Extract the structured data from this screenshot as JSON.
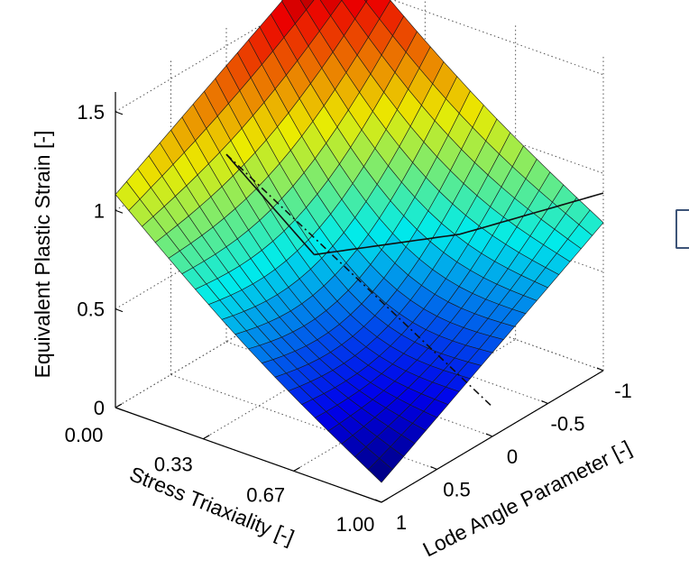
{
  "chart_data": {
    "type": "surface3d",
    "title": "",
    "zlabel": "Equivalent Plastic Strain [-]",
    "xlabel": "Stress Triaxiality [-]",
    "ylabel": "Lode Angle Parameter [-]",
    "x_ticks": [
      "0.00",
      "0.33",
      "0.67",
      "1.00"
    ],
    "y_ticks": [
      "1",
      "0.5",
      "0",
      "-0.5",
      "-1"
    ],
    "z_ticks": [
      "0",
      "0.5",
      "1",
      "1.5"
    ],
    "xlim": [
      0,
      1
    ],
    "ylim": [
      -1,
      1
    ],
    "zlim": [
      0,
      1.6
    ],
    "grid": true,
    "colormap": "jet",
    "surface_corners": [
      {
        "x": 0.0,
        "y": 1.0,
        "z": 1.08
      },
      {
        "x": 0.0,
        "y": -1.0,
        "z": 1.72
      },
      {
        "x": 1.0,
        "y": 1.0,
        "z": 0.1
      },
      {
        "x": 1.0,
        "y": -1.0,
        "z": 0.75
      }
    ],
    "mesh": {
      "rows": 21,
      "cols": 21
    },
    "curves": [
      {
        "style": "solid",
        "points": [
          {
            "x": 0.0,
            "y": 0.0,
            "z": 0.95
          },
          {
            "x": 0.33,
            "y": 0.0,
            "z": 0.6
          }
        ]
      },
      {
        "style": "solid",
        "points": [
          {
            "x": 0.33,
            "y": 0.0,
            "z": 0.6
          },
          {
            "x": 0.67,
            "y": -0.5,
            "z": 0.7
          },
          {
            "x": 1.0,
            "y": -1.0,
            "z": 0.9
          }
        ]
      },
      {
        "style": "dashdot",
        "points": [
          {
            "x": 0.0,
            "y": 0.0,
            "z": 0.95
          },
          {
            "x": 1.0,
            "y": 0.0,
            "z": 0.15
          }
        ]
      }
    ]
  }
}
